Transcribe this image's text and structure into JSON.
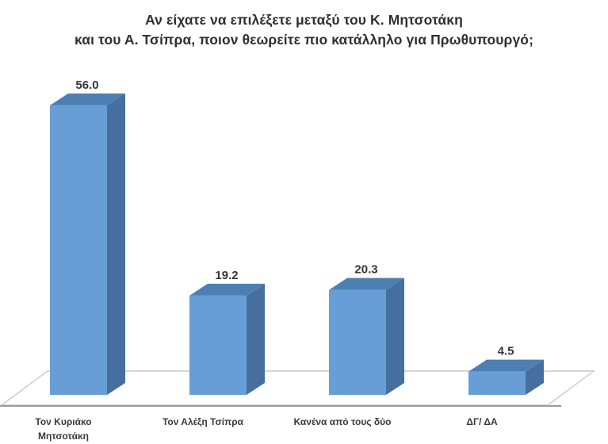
{
  "title": {
    "line1": "Αν είχατε να επιλέξετε μεταξύ του Κ. Μητσοτάκη",
    "line2": "και του Α. Τσίπρα, ποιον θεωρείτε πιο κατάλληλο για Πρωθυπουργό;"
  },
  "chart_data": {
    "type": "bar",
    "style": "3d-column",
    "title": "Αν είχατε να επιλέξετε μεταξύ του Κ. Μητσοτάκη και του Α. Τσίπρα, ποιον θεωρείτε πιο κατάλληλο για Πρωθυπουργό;",
    "categories": [
      "Τον Κυριάκο Μητσοτάκη",
      "Τον Αλέξη Τσίπρα",
      "Κανένα από τους δύο",
      "ΔΓ/ ΔΑ"
    ],
    "category_lines": [
      [
        "Τον Κυριάκο",
        "Μητσοτάκη"
      ],
      [
        "Τον Αλέξη Τσίπρα"
      ],
      [
        "Κανένα από τους δύο"
      ],
      [
        "ΔΓ/ ΔΑ"
      ]
    ],
    "values": [
      56.0,
      19.2,
      20.3,
      4.5
    ],
    "value_labels": [
      "56.0",
      "19.2",
      "20.3",
      "4.5"
    ],
    "xlabel": "",
    "ylabel": "",
    "ylim": [
      0,
      60
    ],
    "grid": false,
    "legend": false,
    "colors": {
      "bar_front": "#689ed6",
      "bar_top": "#4d7fb3",
      "bar_side": "#456f9f",
      "floor_fill": "#ffffff",
      "floor_edge": "#c9c9c9",
      "axis_line": "#9a9a9a",
      "text": "#363636",
      "background": "#ffffff"
    }
  }
}
